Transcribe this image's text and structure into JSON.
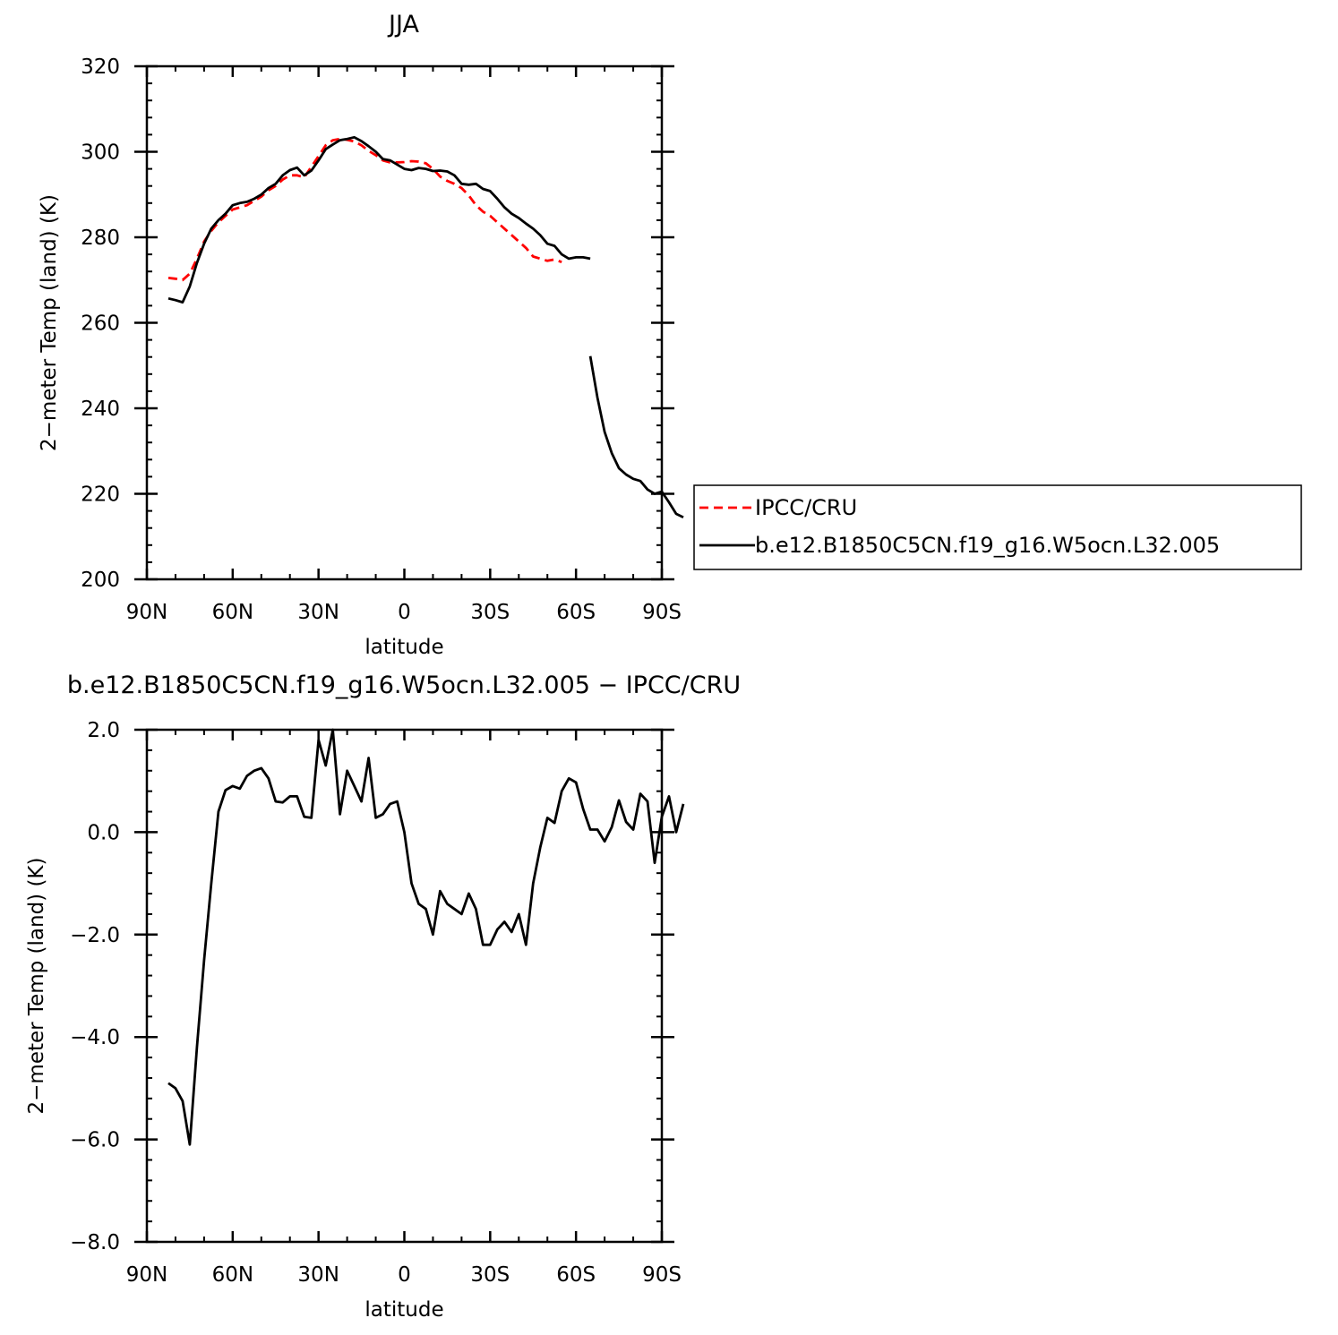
{
  "chart_data": [
    {
      "type": "line",
      "title": "JJA",
      "xlabel": "latitude",
      "ylabel": "2−meter Temp (land) (K)",
      "xlim": [
        90,
        -90
      ],
      "ylim": [
        200,
        320
      ],
      "x_ticks": [
        {
          "value": 90,
          "label": "90N"
        },
        {
          "value": 60,
          "label": "60N"
        },
        {
          "value": 30,
          "label": "30N"
        },
        {
          "value": 0,
          "label": "0"
        },
        {
          "value": -30,
          "label": "30S"
        },
        {
          "value": -60,
          "label": "60S"
        },
        {
          "value": -90,
          "label": "90S"
        }
      ],
      "y_ticks": [
        {
          "value": 200,
          "label": "200"
        },
        {
          "value": 220,
          "label": "220"
        },
        {
          "value": 240,
          "label": "240"
        },
        {
          "value": 260,
          "label": "260"
        },
        {
          "value": 280,
          "label": "280"
        },
        {
          "value": 300,
          "label": "300"
        },
        {
          "value": 320,
          "label": "320"
        }
      ],
      "grid": false,
      "legend": {
        "placement": "right of plot"
      },
      "series": [
        {
          "name": "IPCC/CRU",
          "color": "#ff0000",
          "dash": "dashed",
          "segments": [
            [
              [
                82.5,
                270.5
              ],
              [
                80,
                270.3
              ],
              [
                77.5,
                270
              ],
              [
                75,
                271.5
              ],
              [
                72.5,
                275
              ],
              [
                70,
                279
              ],
              [
                67.5,
                281.5
              ],
              [
                65,
                283.5
              ],
              [
                62.5,
                285
              ],
              [
                60,
                286.5
              ],
              [
                57.5,
                287
              ],
              [
                55,
                287.5
              ],
              [
                52.5,
                288.5
              ],
              [
                50,
                289.5
              ],
              [
                47.5,
                291
              ],
              [
                45,
                292
              ],
              [
                42.5,
                293.5
              ],
              [
                40,
                294.5
              ],
              [
                37.5,
                294.5
              ],
              [
                35,
                294
              ],
              [
                32.5,
                296.5
              ],
              [
                30,
                299
              ],
              [
                27.5,
                301.5
              ],
              [
                25,
                302.7
              ],
              [
                22.5,
                303
              ],
              [
                20,
                302.8
              ],
              [
                17.5,
                302.4
              ],
              [
                15,
                301.5
              ],
              [
                12.5,
                300.2
              ],
              [
                10,
                299.2
              ],
              [
                7.5,
                298
              ],
              [
                5,
                297.5
              ],
              [
                2.5,
                297.5
              ],
              [
                0,
                297.6
              ],
              [
                -2.5,
                297.8
              ],
              [
                -5,
                297.7
              ],
              [
                -7.5,
                297.3
              ],
              [
                -10,
                296
              ],
              [
                -12.5,
                294.2
              ],
              [
                -15,
                293.2
              ],
              [
                -17.5,
                292.5
              ],
              [
                -20,
                291.5
              ],
              [
                -22.5,
                289.8
              ],
              [
                -25,
                287.5
              ],
              [
                -27.5,
                286
              ],
              [
                -30,
                285
              ],
              [
                -32.5,
                283.5
              ],
              [
                -35,
                282
              ],
              [
                -37.5,
                280.5
              ],
              [
                -40,
                279
              ],
              [
                -42.5,
                277.5
              ],
              [
                -45,
                275.5
              ],
              [
                -47.5,
                275
              ],
              [
                -50,
                274.5
              ],
              [
                -52.5,
                274.8
              ],
              [
                -55,
                274.2
              ]
            ]
          ]
        },
        {
          "name": "b.e12.B1850C5CN.f19_g16.W5ocn.L32.005",
          "color": "#000000",
          "dash": "solid",
          "segments": [
            [
              [
                82.5,
                265.7
              ],
              [
                80,
                265.3
              ],
              [
                77.5,
                264.8
              ],
              [
                75,
                268.5
              ],
              [
                72.5,
                274
              ],
              [
                70,
                278.5
              ],
              [
                67.5,
                282
              ],
              [
                65,
                284
              ],
              [
                62.5,
                285.5
              ],
              [
                60,
                287.5
              ],
              [
                57.5,
                288
              ],
              [
                55,
                288.3
              ],
              [
                52.5,
                289
              ],
              [
                50,
                290
              ],
              [
                47.5,
                291.5
              ],
              [
                45,
                292.5
              ],
              [
                42.5,
                294.5
              ],
              [
                40,
                295.7
              ],
              [
                37.5,
                296.3
              ],
              [
                35,
                294.5
              ],
              [
                32.5,
                295.6
              ],
              [
                30,
                298
              ],
              [
                27.5,
                300.6
              ],
              [
                25,
                301.7
              ],
              [
                22.5,
                302.7
              ],
              [
                20,
                303
              ],
              [
                17.5,
                303.4
              ],
              [
                15,
                302.5
              ],
              [
                12.5,
                301.3
              ],
              [
                10,
                300
              ],
              [
                7.5,
                298.3
              ],
              [
                5,
                298
              ],
              [
                2.5,
                297
              ],
              [
                0,
                296
              ],
              [
                -2.5,
                295.7
              ],
              [
                -5,
                296.2
              ],
              [
                -7.5,
                296
              ],
              [
                -10,
                295.5
              ],
              [
                -12.5,
                295.6
              ],
              [
                -15,
                295.4
              ],
              [
                -17.5,
                294.5
              ],
              [
                -20,
                292.5
              ],
              [
                -22.5,
                292.3
              ],
              [
                -25,
                292.5
              ],
              [
                -27.5,
                291.3
              ],
              [
                -30,
                290.8
              ],
              [
                -32.5,
                289
              ],
              [
                -35,
                287
              ],
              [
                -37.5,
                285.5
              ],
              [
                -40,
                284.5
              ],
              [
                -42.5,
                283.2
              ],
              [
                -45,
                282
              ],
              [
                -47.5,
                280.5
              ],
              [
                -50,
                278.5
              ],
              [
                -52.5,
                278
              ],
              [
                -55,
                276
              ],
              [
                -57.5,
                275
              ],
              [
                -60,
                275.3
              ],
              [
                -62.5,
                275.3
              ],
              [
                -65,
                275
              ]
            ],
            [
              [
                -65,
                252.2
              ],
              [
                -67.5,
                242.5
              ],
              [
                -70,
                234.5
              ],
              [
                -72.5,
                229.5
              ],
              [
                -75,
                226
              ],
              [
                -77.5,
                224.5
              ],
              [
                -80,
                223.5
              ],
              [
                -82.5,
                223
              ],
              [
                -85,
                221
              ],
              [
                -87.5,
                220
              ],
              [
                -90,
                220.5
              ],
              [
                -92.5,
                218
              ],
              [
                -95,
                215.3
              ],
              [
                -97.5,
                214.5
              ]
            ]
          ]
        }
      ]
    },
    {
      "type": "line",
      "title": "b.e12.B1850C5CN.f19_g16.W5ocn.L32.005 − IPCC/CRU",
      "xlabel": "latitude",
      "ylabel": "2−meter Temp (land) (K)",
      "xlim": [
        90,
        -90
      ],
      "ylim": [
        -8,
        2
      ],
      "x_ticks": [
        {
          "value": 90,
          "label": "90N"
        },
        {
          "value": 60,
          "label": "60N"
        },
        {
          "value": 30,
          "label": "30N"
        },
        {
          "value": 0,
          "label": "0"
        },
        {
          "value": -30,
          "label": "30S"
        },
        {
          "value": -60,
          "label": "60S"
        },
        {
          "value": -90,
          "label": "90S"
        }
      ],
      "y_ticks": [
        {
          "value": 2,
          "label": "2.0"
        },
        {
          "value": 0,
          "label": "0.0"
        },
        {
          "value": -2,
          "label": "−2.0"
        },
        {
          "value": -4,
          "label": "−4.0"
        },
        {
          "value": -6,
          "label": "−6.0"
        },
        {
          "value": -8,
          "label": "−8.0"
        }
      ],
      "grid": false,
      "series": [
        {
          "color": "#000000",
          "dash": "solid",
          "segments": [
            [
              [
                82.5,
                -4.9
              ],
              [
                80,
                -5.0
              ],
              [
                77.5,
                -5.25
              ],
              [
                75,
                -6.1
              ],
              [
                72.5,
                -4.2
              ],
              [
                70,
                -2.5
              ],
              [
                67.5,
                -1.0
              ],
              [
                65,
                0.4
              ],
              [
                62.5,
                0.82
              ],
              [
                60,
                0.9
              ],
              [
                57.5,
                0.85
              ],
              [
                55,
                1.1
              ],
              [
                52.5,
                1.2
              ],
              [
                50,
                1.25
              ],
              [
                47.5,
                1.05
              ],
              [
                45,
                0.6
              ],
              [
                42.5,
                0.58
              ],
              [
                40,
                0.7
              ],
              [
                37.5,
                0.7
              ],
              [
                35,
                0.3
              ],
              [
                32.5,
                0.28
              ],
              [
                30,
                1.8
              ],
              [
                27.5,
                1.3
              ],
              [
                25,
                2.0
              ],
              [
                22.5,
                0.35
              ],
              [
                20,
                1.2
              ],
              [
                17.5,
                0.9
              ],
              [
                15,
                0.6
              ],
              [
                12.5,
                1.45
              ],
              [
                10,
                0.28
              ],
              [
                7.5,
                0.35
              ],
              [
                5,
                0.55
              ],
              [
                2.5,
                0.6
              ],
              [
                0,
                0.0
              ],
              [
                -2.5,
                -1.0
              ],
              [
                -5,
                -1.4
              ],
              [
                -7.5,
                -1.5
              ],
              [
                -10,
                -2.0
              ],
              [
                -12.5,
                -1.15
              ],
              [
                -15,
                -1.4
              ],
              [
                -17.5,
                -1.5
              ],
              [
                -20,
                -1.6
              ],
              [
                -22.5,
                -1.2
              ],
              [
                -25,
                -1.5
              ],
              [
                -27.5,
                -2.2
              ],
              [
                -30,
                -2.2
              ],
              [
                -32.5,
                -1.9
              ],
              [
                -35,
                -1.75
              ],
              [
                -37.5,
                -1.95
              ],
              [
                -40,
                -1.6
              ],
              [
                -42.5,
                -2.2
              ],
              [
                -45,
                -1.0
              ],
              [
                -47.5,
                -0.3
              ],
              [
                -50,
                0.28
              ],
              [
                -52.5,
                0.18
              ],
              [
                -55,
                0.8
              ],
              [
                -57.5,
                1.05
              ],
              [
                -60,
                0.97
              ],
              [
                -62.5,
                0.45
              ],
              [
                -65,
                0.05
              ],
              [
                -67.5,
                0.05
              ],
              [
                -70,
                -0.18
              ],
              [
                -72.5,
                0.1
              ],
              [
                -75,
                0.62
              ],
              [
                -77.5,
                0.2
              ],
              [
                -80,
                0.05
              ],
              [
                -82.5,
                0.75
              ],
              [
                -85,
                0.6
              ],
              [
                -87.5,
                -0.6
              ],
              [
                -90,
                0.3
              ],
              [
                -92.5,
                0.7
              ],
              [
                -95,
                0.0
              ],
              [
                -97.5,
                0.55
              ]
            ]
          ]
        }
      ]
    }
  ]
}
